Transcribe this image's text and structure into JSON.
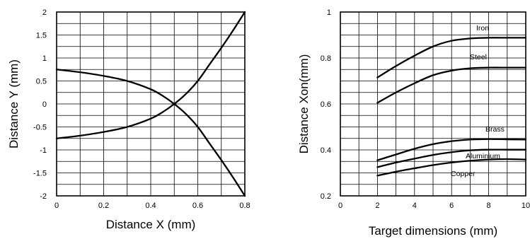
{
  "chart_data": [
    {
      "type": "line",
      "title": "",
      "xlabel": "Distance X (mm)",
      "ylabel": "Distance Y (mm)",
      "xlim": [
        0,
        0.8
      ],
      "ylim": [
        -2,
        2
      ],
      "xticks": [
        "0",
        "0.2",
        "0.4",
        "0.6",
        "0.8"
      ],
      "yticks": [
        "2",
        "1.5",
        "1",
        "0.5",
        "0",
        "-0.5",
        "-1",
        "-1.5",
        "-2"
      ],
      "grid": true,
      "series": [
        {
          "x": [
            0,
            0.1,
            0.2,
            0.3,
            0.4,
            0.45,
            0.5,
            0.55,
            0.6,
            0.65,
            0.7,
            0.75,
            0.8
          ],
          "y": [
            -0.75,
            -0.69,
            -0.61,
            -0.5,
            -0.32,
            -0.18,
            0,
            0.22,
            0.5,
            0.86,
            1.22,
            1.6,
            2.0
          ]
        },
        {
          "x": [
            0,
            0.1,
            0.2,
            0.3,
            0.4,
            0.45,
            0.5,
            0.55,
            0.6,
            0.65,
            0.7,
            0.75,
            0.8
          ],
          "y": [
            0.75,
            0.69,
            0.61,
            0.5,
            0.32,
            0.18,
            0,
            -0.22,
            -0.5,
            -0.86,
            -1.22,
            -1.6,
            -2.0
          ]
        }
      ]
    },
    {
      "type": "line",
      "title": "",
      "xlabel": "Target dimensions (mm)",
      "ylabel": "Distance Xon(mm)",
      "xlim": [
        0,
        10
      ],
      "ylim": [
        0.2,
        1
      ],
      "xticks": [
        "0",
        "2",
        "4",
        "6",
        "8",
        "10"
      ],
      "yticks": [
        "1",
        "0.8",
        "0.6",
        "0.4",
        "0.2"
      ],
      "grid": true,
      "series": [
        {
          "name": "Iron",
          "x": [
            2,
            3,
            4,
            5,
            6,
            7,
            8,
            9,
            10
          ],
          "y": [
            0.715,
            0.765,
            0.81,
            0.85,
            0.875,
            0.885,
            0.888,
            0.888,
            0.888
          ]
        },
        {
          "name": "Steel",
          "x": [
            2,
            3,
            4,
            5,
            6,
            7,
            8,
            9,
            10
          ],
          "y": [
            0.605,
            0.65,
            0.69,
            0.725,
            0.745,
            0.755,
            0.758,
            0.758,
            0.758
          ]
        },
        {
          "name": "Brass",
          "x": [
            2,
            3,
            4,
            5,
            6,
            7,
            8,
            9,
            10
          ],
          "y": [
            0.355,
            0.38,
            0.405,
            0.425,
            0.438,
            0.445,
            0.447,
            0.446,
            0.445
          ]
        },
        {
          "name": "Aluminium",
          "x": [
            2,
            3,
            4,
            5,
            6,
            7,
            8,
            9,
            10
          ],
          "y": [
            0.325,
            0.345,
            0.362,
            0.378,
            0.39,
            0.398,
            0.401,
            0.401,
            0.401
          ]
        },
        {
          "name": "Copper",
          "x": [
            2,
            3,
            4,
            5,
            6,
            7,
            8,
            9,
            10
          ],
          "y": [
            0.288,
            0.305,
            0.32,
            0.334,
            0.345,
            0.353,
            0.358,
            0.36,
            0.358
          ]
        }
      ]
    }
  ]
}
